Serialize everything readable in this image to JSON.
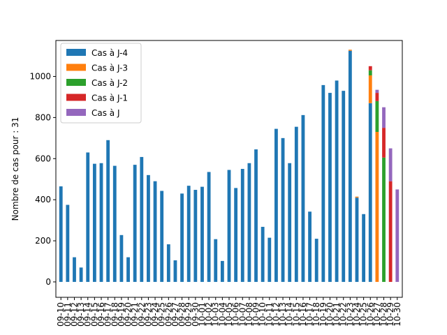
{
  "chart_data": {
    "type": "bar",
    "stacked": true,
    "ylabel": "Nombre de cas pour : 31",
    "xlabel": "",
    "ylim": [
      -75,
      1175
    ],
    "yticks": [
      0,
      200,
      400,
      600,
      800,
      1000
    ],
    "grid": false,
    "legend_position": "top-left",
    "categories": [
      "09-10",
      "09-11",
      "09-12",
      "09-13",
      "09-14",
      "09-15",
      "09-16",
      "09-17",
      "09-18",
      "09-19",
      "09-20",
      "09-21",
      "09-22",
      "09-23",
      "09-24",
      "09-25",
      "09-26",
      "09-27",
      "09-28",
      "09-29",
      "09-30",
      "10-01",
      "10-02",
      "10-03",
      "10-04",
      "10-05",
      "10-06",
      "10-07",
      "10-08",
      "10-09",
      "10-10",
      "10-11",
      "10-12",
      "10-13",
      "10-14",
      "10-15",
      "10-16",
      "10-17",
      "10-18",
      "10-19",
      "10-20",
      "10-21",
      "10-22",
      "10-23",
      "10-24",
      "10-25",
      "10-26",
      "10-27",
      "10-28",
      "10-29",
      "10-30"
    ],
    "series": [
      {
        "name": "Cas à J-4",
        "color": "#1f77b4",
        "values": [
          465,
          375,
          120,
          70,
          630,
          575,
          578,
          690,
          565,
          228,
          120,
          570,
          608,
          520,
          490,
          443,
          183,
          105,
          430,
          468,
          448,
          463,
          535,
          208,
          102,
          545,
          457,
          550,
          578,
          645,
          268,
          215,
          745,
          700,
          578,
          755,
          812,
          342,
          210,
          958,
          920,
          980,
          930,
          1125,
          410,
          330,
          870,
          0,
          0,
          0,
          0
        ]
      },
      {
        "name": "Cas à J-3",
        "color": "#ff7f0e",
        "values": [
          0,
          0,
          0,
          0,
          0,
          0,
          0,
          0,
          0,
          0,
          0,
          0,
          0,
          0,
          0,
          0,
          0,
          0,
          0,
          0,
          0,
          0,
          0,
          0,
          0,
          0,
          0,
          0,
          0,
          0,
          0,
          0,
          0,
          0,
          0,
          0,
          0,
          0,
          0,
          0,
          0,
          0,
          0,
          5,
          5,
          0,
          135,
          730,
          0,
          0,
          0
        ]
      },
      {
        "name": "Cas à J-2",
        "color": "#2ca02c",
        "values": [
          0,
          0,
          0,
          0,
          0,
          0,
          0,
          0,
          0,
          0,
          0,
          0,
          0,
          0,
          0,
          0,
          0,
          0,
          0,
          0,
          0,
          0,
          0,
          0,
          0,
          0,
          0,
          0,
          0,
          0,
          0,
          0,
          0,
          0,
          0,
          0,
          0,
          0,
          0,
          0,
          0,
          0,
          0,
          0,
          0,
          0,
          25,
          150,
          605,
          0,
          0
        ]
      },
      {
        "name": "Cas à J-1",
        "color": "#d62728",
        "values": [
          0,
          0,
          0,
          0,
          0,
          0,
          0,
          0,
          0,
          0,
          0,
          0,
          0,
          0,
          0,
          0,
          0,
          0,
          0,
          0,
          0,
          0,
          0,
          0,
          0,
          0,
          0,
          0,
          0,
          0,
          0,
          0,
          0,
          0,
          0,
          0,
          0,
          0,
          0,
          0,
          0,
          0,
          0,
          0,
          0,
          0,
          20,
          40,
          145,
          490,
          0
        ]
      },
      {
        "name": "Cas à J",
        "color": "#9467bd",
        "values": [
          0,
          0,
          0,
          0,
          0,
          0,
          0,
          0,
          0,
          0,
          0,
          0,
          0,
          0,
          0,
          0,
          0,
          0,
          0,
          0,
          0,
          0,
          0,
          0,
          0,
          0,
          0,
          0,
          0,
          0,
          0,
          0,
          0,
          0,
          0,
          0,
          0,
          0,
          0,
          0,
          0,
          0,
          0,
          0,
          0,
          0,
          0,
          15,
          100,
          160,
          450
        ]
      }
    ]
  }
}
